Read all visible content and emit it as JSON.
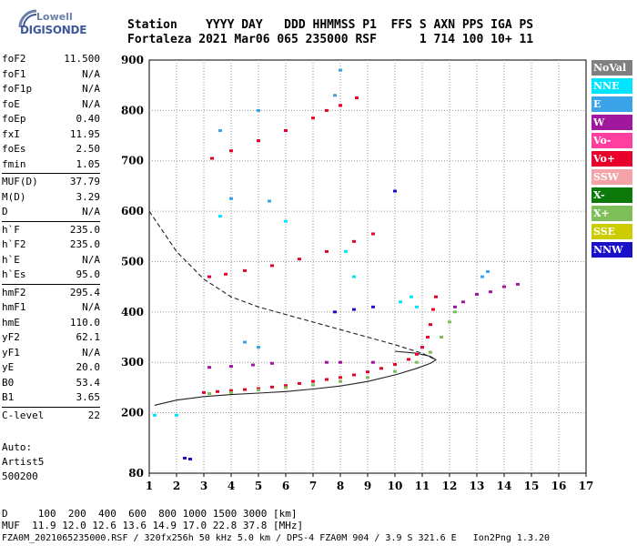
{
  "logo": {
    "top": "Lowell",
    "bottom": "DIGISONDE"
  },
  "header": {
    "line1": "Station    YYYY DAY   DDD HHMMSS P1  FFS S AXN PPS IGA PS",
    "line2": "Fortaleza 2021 Mar06 065 235000 RSF      1 714 100 10+ 11"
  },
  "params": {
    "group1": [
      {
        "name": "foF2",
        "value": "11.500"
      },
      {
        "name": "foF1",
        "value": "N/A"
      },
      {
        "name": "foF1p",
        "value": "N/A"
      },
      {
        "name": "foE",
        "value": "N/A"
      },
      {
        "name": "foEp",
        "value": "0.40"
      },
      {
        "name": "fxI",
        "value": "11.95"
      },
      {
        "name": "foEs",
        "value": "2.50"
      },
      {
        "name": "fmin",
        "value": "1.05"
      }
    ],
    "group2": [
      {
        "name": "MUF(D)",
        "value": "37.79"
      },
      {
        "name": "M(D)",
        "value": "3.29"
      },
      {
        "name": "D",
        "value": "N/A"
      }
    ],
    "group3": [
      {
        "name": "h`F",
        "value": "235.0"
      },
      {
        "name": "h`F2",
        "value": "235.0"
      },
      {
        "name": "h`E",
        "value": "N/A"
      },
      {
        "name": "h`Es",
        "value": "95.0"
      }
    ],
    "group4": [
      {
        "name": "hmF2",
        "value": "295.4"
      },
      {
        "name": "hmF1",
        "value": "N/A"
      },
      {
        "name": "hmE",
        "value": "110.0"
      },
      {
        "name": "yF2",
        "value": "62.1"
      },
      {
        "name": "yF1",
        "value": "N/A"
      },
      {
        "name": "yE",
        "value": "20.0"
      },
      {
        "name": "B0",
        "value": "53.4"
      },
      {
        "name": "B1",
        "value": "3.65"
      }
    ],
    "group5": [
      {
        "name": "C-level",
        "value": "22"
      }
    ]
  },
  "auto": {
    "line1": "Auto:",
    "line2": "Artist5",
    "line3": "500200"
  },
  "footer": {
    "line1": "D     100  200  400  600  800 1000 1500 3000 [km]",
    "line2": "MUF  11.9 12.0 12.6 13.6 14.9 17.0 22.8 37.8 [MHz]",
    "line3": "FZA0M_2021065235000.RSF / 320fx256h 50 kHz 5.0 km / DPS-4 FZA0M 904 / 3.9 S 321.6 E   Ion2Png 1.3.20"
  },
  "legend": [
    {
      "label": "NoVal",
      "color": "#808080"
    },
    {
      "label": "NNE",
      "color": "#00e5ff"
    },
    {
      "label": "E",
      "color": "#3ba3e8"
    },
    {
      "label": "W",
      "color": "#a0189e"
    },
    {
      "label": "Vo-",
      "color": "#ff3fa0"
    },
    {
      "label": "Vo+",
      "color": "#e8002a"
    },
    {
      "label": "SSW",
      "color": "#f4a3a8"
    },
    {
      "label": "X-",
      "color": "#0b7a0b"
    },
    {
      "label": "X+",
      "color": "#7fbf5a"
    },
    {
      "label": "SSE",
      "color": "#cccc00"
    },
    {
      "label": "NNW",
      "color": "#1a10c8"
    }
  ],
  "chart_data": {
    "type": "scatter",
    "xlim": [
      1,
      17
    ],
    "ylim": [
      80,
      900
    ],
    "x_ticks": [
      1,
      2,
      3,
      4,
      5,
      6,
      7,
      8,
      9,
      10,
      11,
      12,
      13,
      14,
      15,
      16,
      17
    ],
    "y_ticks": [
      80,
      200,
      300,
      400,
      500,
      600,
      700,
      800,
      900
    ],
    "grid": true,
    "series": [
      {
        "name": "Vo+",
        "color": "#e8002a",
        "points": [
          [
            3.0,
            240
          ],
          [
            3.5,
            242
          ],
          [
            4.0,
            244
          ],
          [
            4.5,
            246
          ],
          [
            5.0,
            248
          ],
          [
            5.5,
            251
          ],
          [
            6.0,
            254
          ],
          [
            6.5,
            258
          ],
          [
            7.0,
            262
          ],
          [
            7.5,
            266
          ],
          [
            8.0,
            270
          ],
          [
            8.5,
            275
          ],
          [
            9.0,
            281
          ],
          [
            9.5,
            288
          ],
          [
            10.0,
            296
          ],
          [
            10.5,
            306
          ],
          [
            10.8,
            316
          ],
          [
            11.0,
            330
          ],
          [
            11.2,
            350
          ],
          [
            11.3,
            375
          ],
          [
            11.4,
            405
          ],
          [
            11.5,
            430
          ],
          [
            3.2,
            470
          ],
          [
            3.8,
            475
          ],
          [
            4.5,
            482
          ],
          [
            5.5,
            492
          ],
          [
            6.5,
            505
          ],
          [
            7.5,
            520
          ],
          [
            8.5,
            540
          ],
          [
            9.2,
            555
          ],
          [
            3.3,
            705
          ],
          [
            4.0,
            720
          ],
          [
            5.0,
            740
          ],
          [
            6.0,
            760
          ],
          [
            7.0,
            785
          ],
          [
            7.5,
            800
          ],
          [
            8.0,
            810
          ],
          [
            8.6,
            825
          ]
        ]
      },
      {
        "name": "X+",
        "color": "#7fbf5a",
        "points": [
          [
            3.2,
            238
          ],
          [
            4.0,
            240
          ],
          [
            5.0,
            245
          ],
          [
            6.0,
            250
          ],
          [
            7.0,
            255
          ],
          [
            8.0,
            262
          ],
          [
            9.0,
            270
          ],
          [
            10.0,
            282
          ],
          [
            10.8,
            300
          ],
          [
            11.3,
            320
          ],
          [
            11.7,
            350
          ],
          [
            12.0,
            380
          ],
          [
            12.2,
            400
          ]
        ]
      },
      {
        "name": "W",
        "color": "#a0189e",
        "points": [
          [
            12.2,
            410
          ],
          [
            12.5,
            420
          ],
          [
            13.0,
            435
          ],
          [
            13.5,
            440
          ],
          [
            14.0,
            450
          ],
          [
            14.5,
            455
          ],
          [
            3.2,
            290
          ],
          [
            4.0,
            292
          ],
          [
            4.8,
            295
          ],
          [
            5.5,
            298
          ],
          [
            7.5,
            300
          ],
          [
            8.0,
            300
          ],
          [
            9.2,
            300
          ]
        ]
      },
      {
        "name": "NNW",
        "color": "#1a10c8",
        "points": [
          [
            7.8,
            400
          ],
          [
            8.5,
            405
          ],
          [
            9.2,
            410
          ],
          [
            10.0,
            640
          ],
          [
            2.3,
            110
          ],
          [
            2.5,
            108
          ]
        ]
      },
      {
        "name": "NNE",
        "color": "#00e5ff",
        "points": [
          [
            10.2,
            420
          ],
          [
            10.6,
            430
          ],
          [
            10.8,
            410
          ],
          [
            3.6,
            590
          ],
          [
            6.0,
            580
          ],
          [
            8.2,
            520
          ],
          [
            8.5,
            470
          ],
          [
            2.0,
            195
          ],
          [
            1.2,
            195
          ]
        ]
      },
      {
        "name": "E",
        "color": "#3ba3e8",
        "points": [
          [
            13.2,
            470
          ],
          [
            13.4,
            480
          ],
          [
            5.4,
            620
          ],
          [
            4.0,
            625
          ],
          [
            3.6,
            760
          ],
          [
            5.0,
            800
          ],
          [
            7.8,
            830
          ],
          [
            8.0,
            880
          ],
          [
            4.5,
            340
          ],
          [
            5.0,
            330
          ]
        ]
      }
    ],
    "curves": [
      {
        "name": "profile",
        "style": "solid",
        "points": [
          [
            1.2,
            215
          ],
          [
            2.0,
            225
          ],
          [
            3.0,
            232
          ],
          [
            4.0,
            236
          ],
          [
            5.0,
            239
          ],
          [
            6.0,
            242
          ],
          [
            7.0,
            247
          ],
          [
            8.0,
            253
          ],
          [
            9.0,
            262
          ],
          [
            10.0,
            275
          ],
          [
            10.8,
            288
          ],
          [
            11.3,
            298
          ],
          [
            11.5,
            305
          ],
          [
            11.3,
            312
          ],
          [
            10.8,
            318
          ],
          [
            10.0,
            322
          ]
        ]
      },
      {
        "name": "dashed",
        "style": "dashed",
        "points": [
          [
            1.0,
            600
          ],
          [
            2.0,
            520
          ],
          [
            3.0,
            465
          ],
          [
            4.0,
            430
          ],
          [
            5.0,
            410
          ],
          [
            6.0,
            395
          ],
          [
            7.0,
            380
          ],
          [
            8.0,
            365
          ],
          [
            9.0,
            350
          ],
          [
            10.0,
            335
          ],
          [
            11.0,
            318
          ],
          [
            11.5,
            305
          ]
        ]
      }
    ]
  }
}
